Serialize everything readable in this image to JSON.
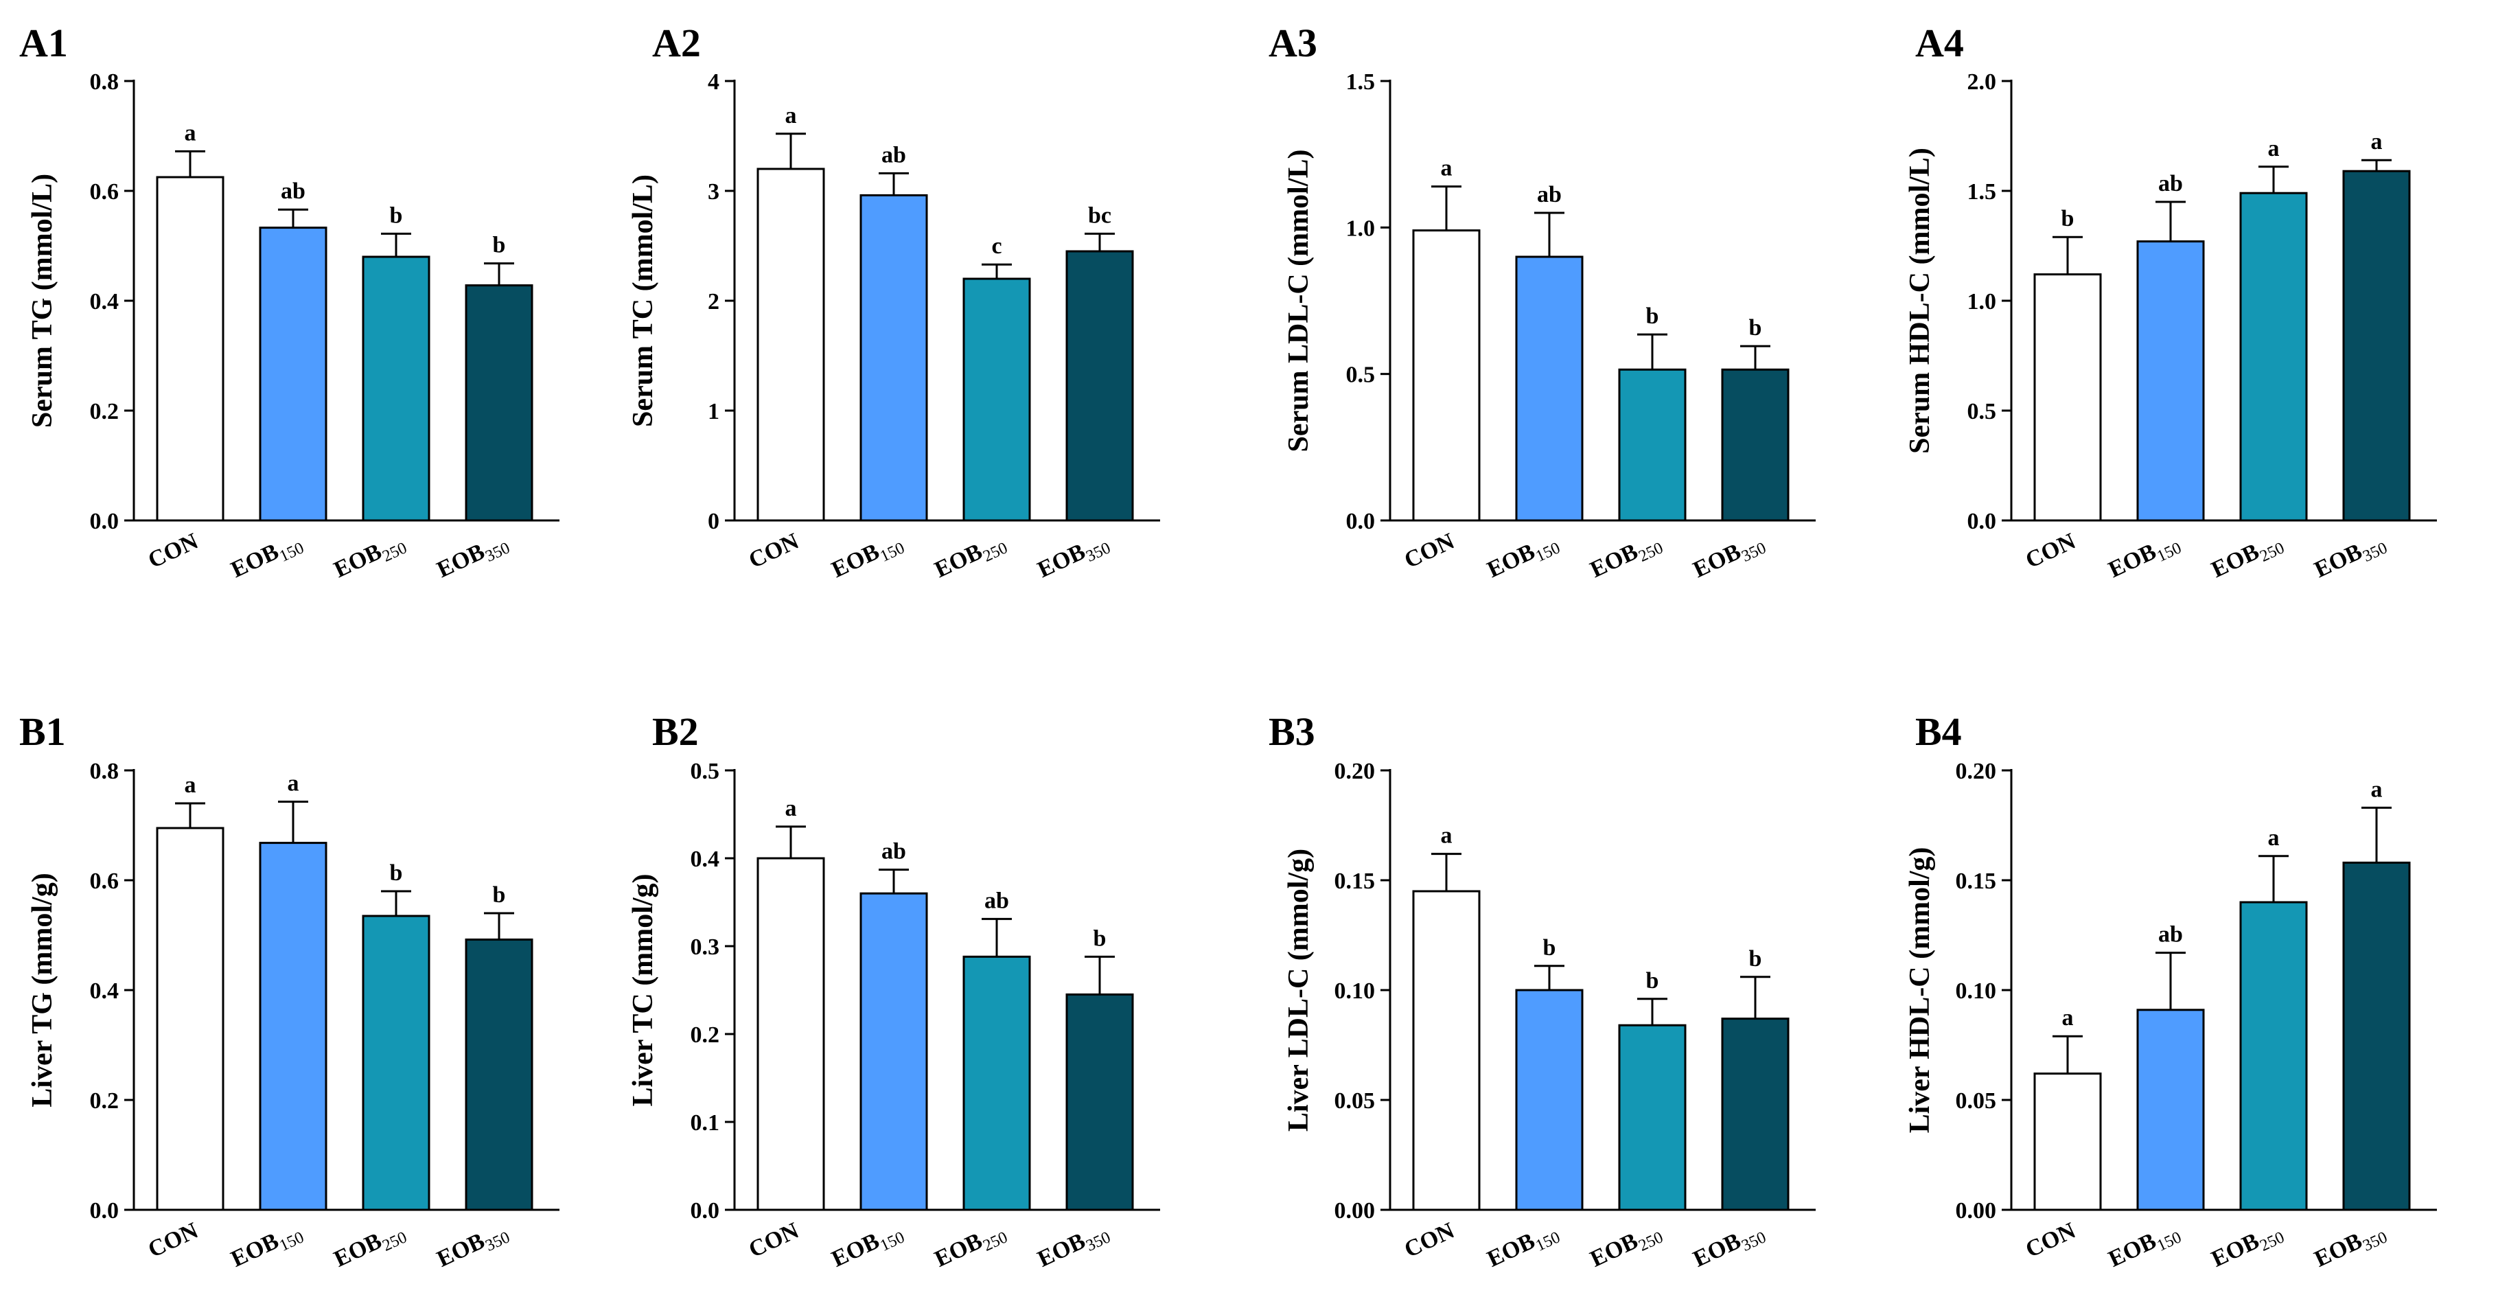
{
  "figure": {
    "colors": {
      "CON": "#ffffff",
      "EOB150": "#4f9cff",
      "EOB250": "#1497b4",
      "EOB350": "#064d60"
    },
    "category_labels": [
      {
        "main": "CON",
        "sub": ""
      },
      {
        "main": "EOB",
        "sub": "150"
      },
      {
        "main": "EOB",
        "sub": "250"
      },
      {
        "main": "EOB",
        "sub": "350"
      }
    ]
  },
  "chart_data": [
    {
      "id": "A1",
      "type": "bar",
      "title": "A1",
      "ylabel": "Serum TG (mmol/L)",
      "categories": [
        "CON",
        "EOB150",
        "EOB250",
        "EOB350"
      ],
      "values": [
        0.625,
        0.533,
        0.48,
        0.428
      ],
      "errors": [
        0.047,
        0.033,
        0.042,
        0.04
      ],
      "significance": [
        "a",
        "ab",
        "b",
        "b"
      ],
      "ylim": [
        0,
        0.8
      ],
      "yticks": [
        0.0,
        0.2,
        0.4,
        0.6,
        0.8
      ],
      "ytick_labels": [
        "0.0",
        "0.2",
        "0.4",
        "0.6",
        "0.8"
      ]
    },
    {
      "id": "A2",
      "type": "bar",
      "title": "A2",
      "ylabel": "Serum TC (mmol/L)",
      "categories": [
        "CON",
        "EOB150",
        "EOB250",
        "EOB350"
      ],
      "values": [
        3.2,
        2.96,
        2.2,
        2.45
      ],
      "errors": [
        0.32,
        0.2,
        0.13,
        0.16
      ],
      "significance": [
        "a",
        "ab",
        "c",
        "bc"
      ],
      "ylim": [
        0,
        4
      ],
      "yticks": [
        0,
        1,
        2,
        3,
        4
      ],
      "ytick_labels": [
        "0",
        "1",
        "2",
        "3",
        "4"
      ]
    },
    {
      "id": "A3",
      "type": "bar",
      "title": "A3",
      "ylabel": "Serum LDL-C (mmol/L)",
      "categories": [
        "CON",
        "EOB150",
        "EOB250",
        "EOB350"
      ],
      "values": [
        0.99,
        0.9,
        0.515,
        0.515
      ],
      "errors": [
        0.15,
        0.15,
        0.12,
        0.08
      ],
      "significance": [
        "a",
        "ab",
        "b",
        "b"
      ],
      "ylim": [
        0,
        1.5
      ],
      "yticks": [
        0.0,
        0.5,
        1.0,
        1.5
      ],
      "ytick_labels": [
        "0.0",
        "0.5",
        "1.0",
        "1.5"
      ]
    },
    {
      "id": "A4",
      "type": "bar",
      "title": "A4",
      "ylabel": "Serum HDL-C (mmol/L)",
      "categories": [
        "CON",
        "EOB150",
        "EOB250",
        "EOB350"
      ],
      "values": [
        1.12,
        1.27,
        1.49,
        1.59
      ],
      "errors": [
        0.17,
        0.18,
        0.12,
        0.05
      ],
      "significance": [
        "b",
        "ab",
        "a",
        "a"
      ],
      "ylim": [
        0,
        2.0
      ],
      "yticks": [
        0.0,
        0.5,
        1.0,
        1.5,
        2.0
      ],
      "ytick_labels": [
        "0.0",
        "0.5",
        "1.0",
        "1.5",
        "2.0"
      ]
    },
    {
      "id": "B1",
      "type": "bar",
      "title": "B1",
      "ylabel": "Liver TG (mmol/g)",
      "categories": [
        "CON",
        "EOB150",
        "EOB250",
        "EOB350"
      ],
      "values": [
        0.695,
        0.668,
        0.535,
        0.492
      ],
      "errors": [
        0.045,
        0.075,
        0.045,
        0.048
      ],
      "significance": [
        "a",
        "a",
        "b",
        "b"
      ],
      "ylim": [
        0,
        0.8
      ],
      "yticks": [
        0.0,
        0.2,
        0.4,
        0.6,
        0.8
      ],
      "ytick_labels": [
        "0.0",
        "0.2",
        "0.4",
        "0.6",
        "0.8"
      ]
    },
    {
      "id": "B2",
      "type": "bar",
      "title": "B2",
      "ylabel": "Liver TC (mmol/g)",
      "categories": [
        "CON",
        "EOB150",
        "EOB250",
        "EOB350"
      ],
      "values": [
        0.4,
        0.36,
        0.288,
        0.245
      ],
      "errors": [
        0.036,
        0.027,
        0.043,
        0.043
      ],
      "significance": [
        "a",
        "ab",
        "ab",
        "b"
      ],
      "ylim": [
        0,
        0.5
      ],
      "yticks": [
        0.0,
        0.1,
        0.2,
        0.3,
        0.4,
        0.5
      ],
      "ytick_labels": [
        "0.0",
        "0.1",
        "0.2",
        "0.3",
        "0.4",
        "0.5"
      ]
    },
    {
      "id": "B3",
      "type": "bar",
      "title": "B3",
      "ylabel": "Liver LDL-C (mmol/g)",
      "categories": [
        "CON",
        "EOB150",
        "EOB250",
        "EOB350"
      ],
      "values": [
        0.145,
        0.1,
        0.084,
        0.087
      ],
      "errors": [
        0.017,
        0.011,
        0.012,
        0.019
      ],
      "significance": [
        "a",
        "b",
        "b",
        "b"
      ],
      "ylim": [
        0,
        0.2
      ],
      "yticks": [
        0.0,
        0.05,
        0.1,
        0.15,
        0.2
      ],
      "ytick_labels": [
        "0.00",
        "0.05",
        "0.10",
        "0.15",
        "0.20"
      ]
    },
    {
      "id": "B4",
      "type": "bar",
      "title": "B4",
      "ylabel": "Liver HDL-C (mmol/g)",
      "categories": [
        "CON",
        "EOB150",
        "EOB250",
        "EOB350"
      ],
      "values": [
        0.062,
        0.091,
        0.14,
        0.158
      ],
      "errors": [
        0.017,
        0.026,
        0.021,
        0.025
      ],
      "significance": [
        "a",
        "ab",
        "a",
        "a"
      ],
      "ylim": [
        0,
        0.2
      ],
      "yticks": [
        0.0,
        0.05,
        0.1,
        0.15,
        0.2
      ],
      "ytick_labels": [
        "0.00",
        "0.05",
        "0.10",
        "0.15",
        "0.20"
      ]
    }
  ]
}
